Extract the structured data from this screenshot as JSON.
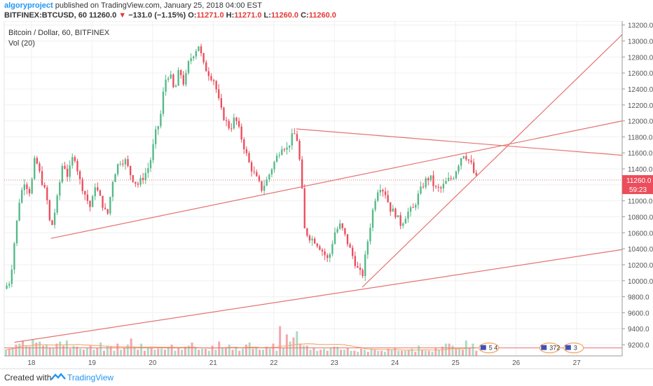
{
  "header": {
    "author": "algoryproject",
    "published_text": "published on TradingView.com, January 25, 2018 04:00 EST",
    "symbol": "BITFINEX:BTCUSD, 60",
    "last": "11260.0",
    "change": "−131.0 (−1.15%)",
    "ohlc_o_label": "O:",
    "ohlc_o": "11271.0",
    "ohlc_h_label": "H:",
    "ohlc_h": "11271.0",
    "ohlc_l_label": "L:",
    "ohlc_l": "11260.0",
    "ohlc_c_label": "C:",
    "ohlc_c": "11260.0"
  },
  "legend": {
    "title": "Bitcoin / Dollar, 60, BITFINEX",
    "volume": "Vol (20)"
  },
  "price_axis": {
    "current_price": "11260.0",
    "countdown": "59:23"
  },
  "events": {
    "badge1": "5 4",
    "badge2": "372",
    "badge3": "3"
  },
  "footer": {
    "created_with": "Created with",
    "brand": "TradingView"
  },
  "colors": {
    "up": "#53b987",
    "down": "#eb4d5c",
    "trendline": "#e57373",
    "vol_up": "#a9dcc3",
    "vol_down": "#f5a6ae",
    "vol_ma": "#f4a460"
  },
  "chart_data": {
    "type": "candlestick",
    "x_axis": {
      "ticks": [
        "18",
        "19",
        "20",
        "21",
        "22",
        "23",
        "24",
        "25",
        "26",
        "27"
      ],
      "range": [
        17.55,
        27.75
      ]
    },
    "y_axis": {
      "ticks": [
        9200,
        9400,
        9600,
        9800,
        10000,
        10200,
        10400,
        10600,
        10800,
        11000,
        11200,
        11400,
        11600,
        11800,
        12000,
        12200,
        12400,
        12600,
        12800,
        13000,
        13200
      ],
      "range": [
        9060,
        13250
      ],
      "grid": true,
      "position": "right"
    },
    "price_path": [
      [
        17.55,
        9900
      ],
      [
        17.65,
        10000
      ],
      [
        17.72,
        10500
      ],
      [
        17.8,
        11000
      ],
      [
        17.88,
        11250
      ],
      [
        17.98,
        11100
      ],
      [
        18.06,
        11550
      ],
      [
        18.15,
        11300
      ],
      [
        18.25,
        11050
      ],
      [
        18.32,
        10620
      ],
      [
        18.42,
        11000
      ],
      [
        18.52,
        11500
      ],
      [
        18.6,
        11300
      ],
      [
        18.7,
        11600
      ],
      [
        18.8,
        11250
      ],
      [
        18.9,
        11050
      ],
      [
        18.98,
        10900
      ],
      [
        19.05,
        11200
      ],
      [
        19.15,
        11000
      ],
      [
        19.25,
        10800
      ],
      [
        19.35,
        11300
      ],
      [
        19.45,
        11500
      ],
      [
        19.55,
        11500
      ],
      [
        19.65,
        11300
      ],
      [
        19.75,
        11200
      ],
      [
        19.85,
        11300
      ],
      [
        19.95,
        11450
      ],
      [
        20.05,
        11850
      ],
      [
        20.12,
        12000
      ],
      [
        20.2,
        12500
      ],
      [
        20.28,
        12600
      ],
      [
        20.36,
        12350
      ],
      [
        20.44,
        12650
      ],
      [
        20.52,
        12450
      ],
      [
        20.6,
        12750
      ],
      [
        20.68,
        12850
      ],
      [
        20.76,
        12950
      ],
      [
        20.84,
        12700
      ],
      [
        20.92,
        12600
      ],
      [
        21.02,
        12500
      ],
      [
        21.12,
        12150
      ],
      [
        21.2,
        12000
      ],
      [
        21.28,
        11900
      ],
      [
        21.36,
        12050
      ],
      [
        21.44,
        11850
      ],
      [
        21.52,
        11650
      ],
      [
        21.6,
        11450
      ],
      [
        21.7,
        11300
      ],
      [
        21.8,
        11150
      ],
      [
        21.88,
        11250
      ],
      [
        21.96,
        11400
      ],
      [
        22.05,
        11550
      ],
      [
        22.14,
        11700
      ],
      [
        22.22,
        11650
      ],
      [
        22.3,
        11800
      ],
      [
        22.37,
        11850
      ],
      [
        22.45,
        11350
      ],
      [
        22.5,
        10650
      ],
      [
        22.58,
        10550
      ],
      [
        22.68,
        10500
      ],
      [
        22.78,
        10400
      ],
      [
        22.9,
        10250
      ],
      [
        23.0,
        10600
      ],
      [
        23.1,
        10700
      ],
      [
        23.18,
        10550
      ],
      [
        23.28,
        10350
      ],
      [
        23.38,
        10150
      ],
      [
        23.46,
        10050
      ],
      [
        23.56,
        10550
      ],
      [
        23.66,
        11000
      ],
      [
        23.74,
        11200
      ],
      [
        23.84,
        11100
      ],
      [
        23.92,
        10900
      ],
      [
        24.0,
        10850
      ],
      [
        24.1,
        10700
      ],
      [
        24.2,
        10850
      ],
      [
        24.3,
        10900
      ],
      [
        24.4,
        11100
      ],
      [
        24.5,
        11250
      ],
      [
        24.58,
        11300
      ],
      [
        24.66,
        11150
      ],
      [
        24.76,
        11150
      ],
      [
        24.86,
        11250
      ],
      [
        24.96,
        11300
      ],
      [
        25.04,
        11450
      ],
      [
        25.12,
        11600
      ],
      [
        25.18,
        11550
      ],
      [
        25.26,
        11450
      ],
      [
        25.32,
        11300
      ],
      [
        25.37,
        11260
      ]
    ],
    "trendlines": [
      {
        "from": [
          18.32,
          10530
        ],
        "to": [
          27.75,
          12000
        ]
      },
      {
        "from": [
          17.72,
          9230
        ],
        "to": [
          27.75,
          10390
        ]
      },
      {
        "from": [
          22.37,
          11900
        ],
        "to": [
          27.75,
          11570
        ]
      },
      {
        "from": [
          23.46,
          9920
        ],
        "to": [
          27.75,
          13080
        ]
      }
    ],
    "horizontal_levels": [
      {
        "value": 11260,
        "style": "dotted"
      },
      {
        "value": 9160,
        "style": "solid"
      }
    ],
    "volume": {
      "ma_period": 20,
      "scale_max": 10,
      "up_bars": [
        1.2,
        1.6,
        2.4,
        2.0,
        3.2,
        2.8,
        2.2,
        1.6,
        2.8,
        3.0,
        2.0,
        1.4,
        1.6,
        1.2,
        2.6,
        2.0,
        1.0,
        1.2,
        2.2,
        1.8,
        2.4,
        1.6,
        1.2,
        1.4,
        1.8,
        1.0,
        1.2,
        2.0,
        1.6,
        1.4,
        1.0,
        1.2,
        1.6,
        2.2,
        1.8,
        1.4,
        2.6,
        1.8,
        1.2,
        1.4,
        1.0,
        1.6,
        2.8,
        4.8,
        2.0,
        1.2,
        1.0,
        1.4,
        1.6,
        1.8,
        1.2,
        1.0,
        0.8,
        1.2,
        1.4,
        1.0,
        0.8,
        1.2,
        1.0,
        1.0,
        1.4,
        2.0,
        1.0,
        0.8,
        1.2,
        2.4,
        2.0,
        1.4,
        3.0,
        2.4
      ],
      "down_bars": [
        1.4,
        2.2,
        3.0,
        1.8,
        2.6,
        2.0,
        1.6,
        2.4,
        2.0,
        1.4,
        1.8,
        1.2,
        2.0,
        1.6,
        1.0,
        1.8,
        2.4,
        1.6,
        3.4,
        1.2,
        1.0,
        1.6,
        1.4,
        1.2,
        2.2,
        1.6,
        1.8,
        2.6,
        1.2,
        1.4,
        2.0,
        2.8,
        1.6,
        1.2,
        1.0,
        2.2,
        1.4,
        1.2,
        1.8,
        2.4,
        5.8,
        4.2,
        3.6,
        2.4,
        2.0,
        1.6,
        1.2,
        1.0,
        1.8,
        1.2,
        1.6,
        1.0,
        1.4,
        0.8,
        1.2,
        1.0,
        1.4,
        1.6,
        1.0,
        1.2,
        0.8,
        1.2,
        1.0,
        1.6,
        1.8,
        2.4,
        1.4,
        1.2,
        1.6,
        1.0
      ]
    }
  }
}
